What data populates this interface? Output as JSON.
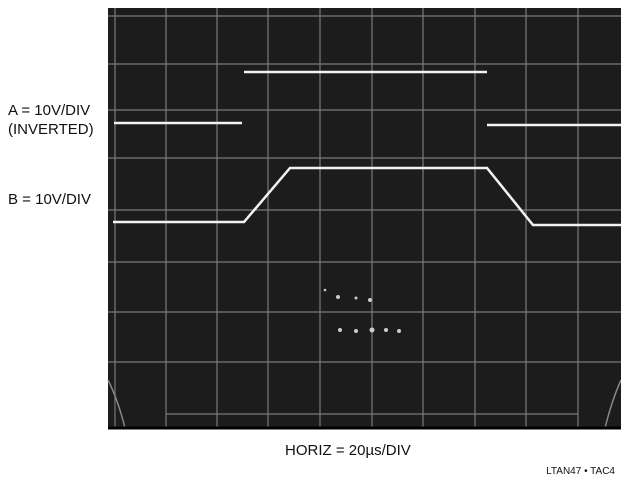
{
  "labels": {
    "channel_a": "A = 10V/DIV",
    "channel_a_note": "(INVERTED)",
    "channel_b": "B = 10V/DIV",
    "horizontal": "HORIZ = 20µs/DIV",
    "figure_id": "LTAN47 • TAC4"
  }
}
